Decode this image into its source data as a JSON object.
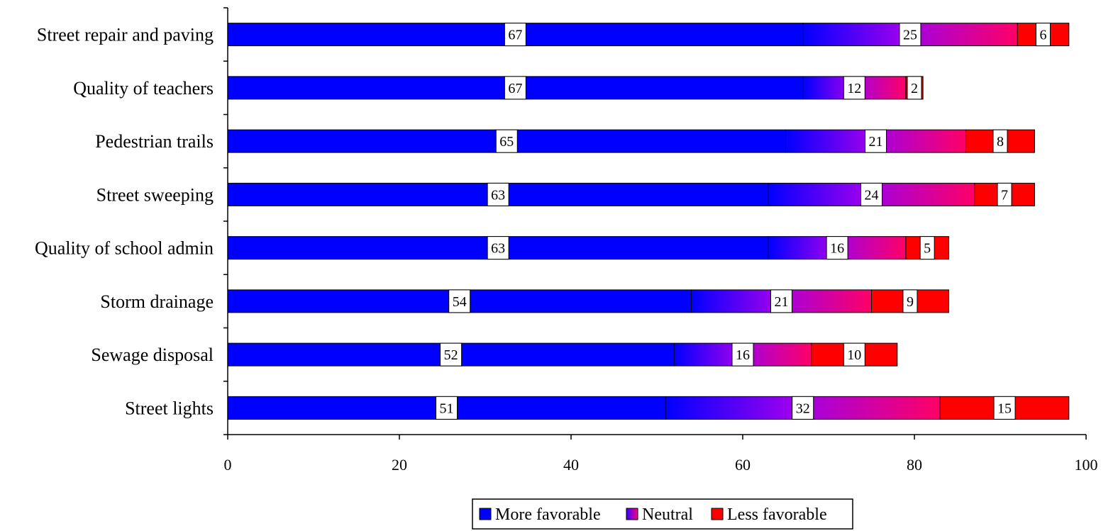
{
  "chart_data": {
    "type": "bar",
    "orientation": "horizontal",
    "stacked": true,
    "categories": [
      "Street repair and paving",
      "Quality of teachers",
      "Pedestrian trails",
      "Street sweeping",
      "Quality of school admin",
      "Storm drainage",
      "Sewage disposal",
      "Street lights"
    ],
    "series": [
      {
        "name": "More favorable",
        "values": [
          67,
          67,
          65,
          63,
          63,
          54,
          52,
          51
        ],
        "color": "#0000ff"
      },
      {
        "name": "Neutral",
        "values": [
          25,
          12,
          21,
          24,
          16,
          21,
          16,
          32
        ],
        "color": "#9933cc"
      },
      {
        "name": "Less favorable",
        "values": [
          6,
          2,
          8,
          7,
          5,
          9,
          10,
          15
        ],
        "color": "#ff0000"
      }
    ],
    "data_labels": true,
    "xlim": [
      0,
      100
    ],
    "xticks": [
      "0",
      "20",
      "40",
      "60",
      "80",
      "100"
    ],
    "grid": false,
    "legend_position": "bottom",
    "title": "",
    "xlabel": "",
    "ylabel": ""
  }
}
